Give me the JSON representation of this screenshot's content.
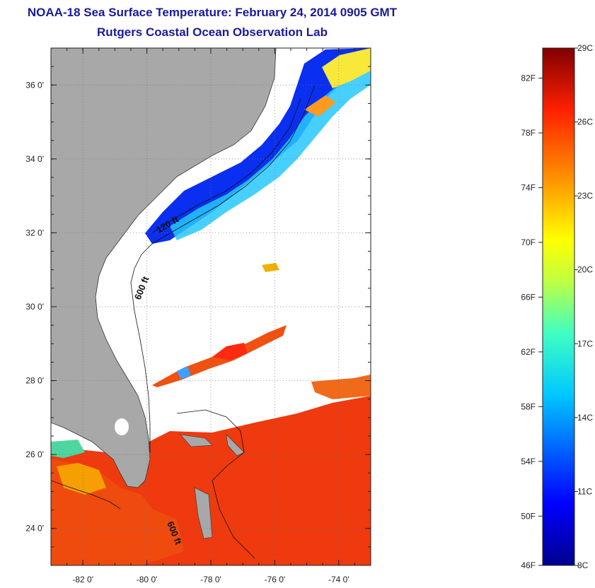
{
  "header": {
    "title": "NOAA-18 Sea Surface Temperature:  February 24, 2014 0905 GMT",
    "subtitle": "Rutgers Coastal Ocean Observation Lab"
  },
  "map": {
    "lat_labels": [
      "36 0'",
      "34 0'",
      "32 0'",
      "30 0'",
      "28 0'",
      "26 0'",
      "24 0'"
    ],
    "lat_values": [
      36,
      34,
      32,
      30,
      28,
      26,
      24
    ],
    "lon_labels": [
      "-82 0'",
      "-80 0'",
      "-78 0'",
      "-76 0'",
      "-74 0'"
    ],
    "lon_values": [
      -82,
      -80,
      -78,
      -76,
      -74
    ],
    "lat_range": [
      23,
      37
    ],
    "lon_range": [
      -83,
      -73
    ],
    "contour_labels": [
      "120 ft",
      "600 ft",
      "600 ft"
    ],
    "colors": {
      "land": "#a8a8a8",
      "cloud": "#ffffff",
      "grid": "#777777"
    }
  },
  "colorbar": {
    "f_labels": [
      "82F",
      "78F",
      "74F",
      "70F",
      "66F",
      "62F",
      "58F",
      "54F",
      "50F",
      "46F"
    ],
    "f_values": [
      82,
      78,
      74,
      70,
      66,
      62,
      58,
      54,
      50,
      46
    ],
    "c_labels": [
      "29C",
      "26C",
      "23C",
      "20C",
      "17C",
      "14C",
      "11C",
      "8C"
    ],
    "c_values": [
      29,
      26,
      23,
      20,
      17,
      14,
      11,
      8
    ],
    "c_range": [
      8,
      29
    ]
  }
}
